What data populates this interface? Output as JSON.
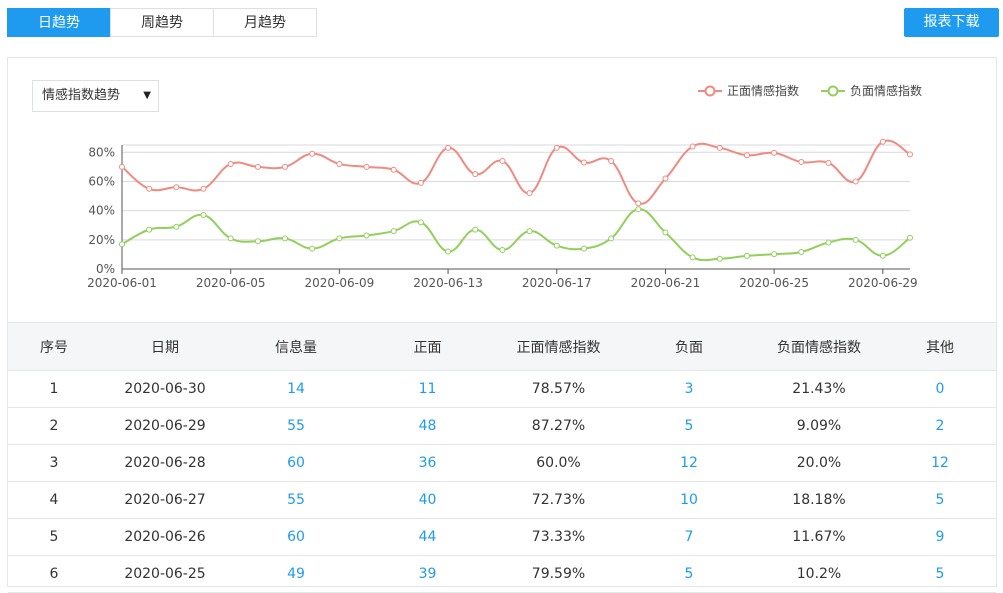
{
  "tabs": [
    "日趋势",
    "周趋势",
    "月趋势"
  ],
  "active_tab_index": 0,
  "download_label": "报表下载",
  "select": {
    "value": "情感指数趋势",
    "caret": "▼"
  },
  "colors": {
    "accent": "#1e9bef",
    "positive": "#f08a80",
    "negative": "#92cf5c"
  },
  "chart_data": {
    "type": "line",
    "x": [
      "2020-06-01",
      "2020-06-02",
      "2020-06-03",
      "2020-06-04",
      "2020-06-05",
      "2020-06-06",
      "2020-06-07",
      "2020-06-08",
      "2020-06-09",
      "2020-06-10",
      "2020-06-11",
      "2020-06-12",
      "2020-06-13",
      "2020-06-14",
      "2020-06-15",
      "2020-06-16",
      "2020-06-17",
      "2020-06-18",
      "2020-06-19",
      "2020-06-20",
      "2020-06-21",
      "2020-06-22",
      "2020-06-23",
      "2020-06-24",
      "2020-06-25",
      "2020-06-26",
      "2020-06-27",
      "2020-06-28",
      "2020-06-29",
      "2020-06-30"
    ],
    "xticks": [
      "2020-06-01",
      "2020-06-05",
      "2020-06-09",
      "2020-06-13",
      "2020-06-17",
      "2020-06-21",
      "2020-06-25",
      "2020-06-29"
    ],
    "yticks": [
      "0%",
      "20%",
      "40%",
      "60%",
      "80%"
    ],
    "ylim": [
      0,
      85
    ],
    "series": [
      {
        "name": "正面情感指数",
        "values": [
          70,
          55,
          56,
          55,
          72,
          70,
          70,
          79,
          72,
          70,
          68,
          59,
          83,
          65,
          74,
          52,
          83,
          73,
          74,
          45,
          62,
          84,
          83,
          78,
          79.59,
          73.33,
          72.73,
          60,
          87.27,
          78.57
        ]
      },
      {
        "name": "负面情感指数",
        "values": [
          17,
          27,
          29,
          37,
          21,
          19,
          21,
          14,
          21,
          23,
          26,
          32,
          12,
          27,
          13,
          26,
          16,
          14,
          21,
          41,
          25,
          8,
          7,
          9,
          10.2,
          11.67,
          18.18,
          20,
          9.09,
          21.43
        ]
      }
    ],
    "legend_position": "top-right",
    "grid": true
  },
  "table": {
    "headers": [
      "序号",
      "日期",
      "信息量",
      "正面",
      "正面情感指数",
      "负面",
      "负面情感指数",
      "其他"
    ],
    "rows": [
      [
        "1",
        "2020-06-30",
        "14",
        "11",
        "78.57%",
        "3",
        "21.43%",
        "0"
      ],
      [
        "2",
        "2020-06-29",
        "55",
        "48",
        "87.27%",
        "5",
        "9.09%",
        "2"
      ],
      [
        "3",
        "2020-06-28",
        "60",
        "36",
        "60.0%",
        "12",
        "20.0%",
        "12"
      ],
      [
        "4",
        "2020-06-27",
        "55",
        "40",
        "72.73%",
        "10",
        "18.18%",
        "5"
      ],
      [
        "5",
        "2020-06-26",
        "60",
        "44",
        "73.33%",
        "7",
        "11.67%",
        "9"
      ],
      [
        "6",
        "2020-06-25",
        "49",
        "39",
        "79.59%",
        "5",
        "10.2%",
        "5"
      ]
    ]
  }
}
